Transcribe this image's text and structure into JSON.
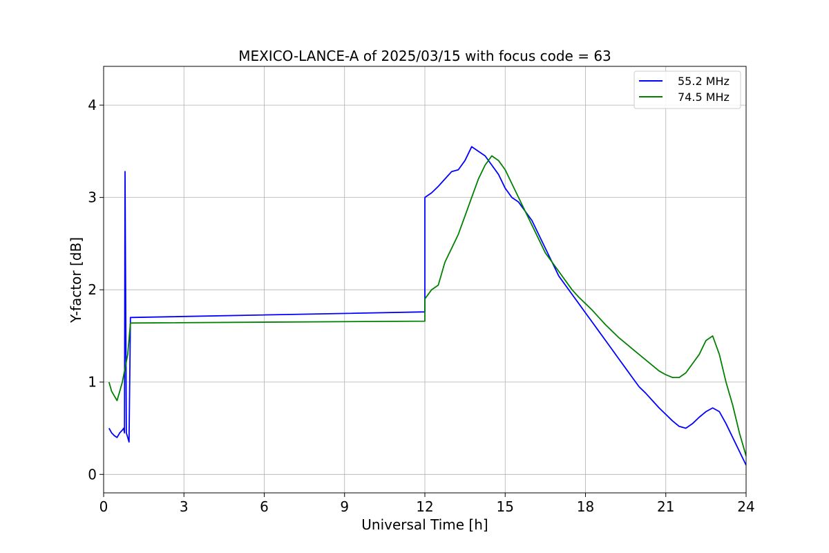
{
  "chart_data": {
    "type": "line",
    "title": "MEXICO-LANCE-A of 2025/03/15 with focus code = 63",
    "xlabel": "Universal Time [h]",
    "ylabel": "Y-factor [dB]",
    "xlim": [
      0,
      24
    ],
    "ylim": [
      -0.2,
      4.42
    ],
    "x_ticks": [
      0,
      3,
      6,
      9,
      12,
      15,
      18,
      21,
      24
    ],
    "y_ticks": [
      0,
      1,
      2,
      3,
      4
    ],
    "grid": true,
    "legend_position": "top-right",
    "series": [
      {
        "name": "55.2 MHz",
        "color": "#0000ff",
        "x": [
          0.2,
          0.3,
          0.4,
          0.5,
          0.6,
          0.7,
          0.75,
          0.78,
          0.8,
          0.85,
          0.9,
          0.95,
          1.0,
          12.0,
          12.0,
          12.25,
          12.5,
          12.75,
          13.0,
          13.25,
          13.5,
          13.75,
          14.0,
          14.25,
          14.5,
          14.75,
          15.0,
          15.25,
          15.5,
          15.75,
          16.0,
          16.25,
          16.5,
          16.75,
          17.0,
          17.25,
          17.5,
          17.75,
          18.0,
          18.25,
          18.5,
          18.75,
          19.0,
          19.25,
          19.5,
          19.75,
          20.0,
          20.25,
          20.5,
          20.75,
          21.0,
          21.25,
          21.5,
          21.75,
          22.0,
          22.25,
          22.5,
          22.75,
          23.0,
          23.25,
          23.5,
          23.75,
          24.0
        ],
        "y": [
          0.5,
          0.45,
          0.42,
          0.4,
          0.45,
          0.48,
          0.5,
          0.45,
          3.28,
          0.45,
          0.4,
          0.35,
          1.7,
          1.76,
          3.0,
          3.05,
          3.12,
          3.2,
          3.28,
          3.3,
          3.4,
          3.55,
          3.5,
          3.45,
          3.35,
          3.25,
          3.1,
          3.0,
          2.95,
          2.85,
          2.75,
          2.6,
          2.45,
          2.3,
          2.15,
          2.05,
          1.95,
          1.85,
          1.75,
          1.65,
          1.55,
          1.45,
          1.35,
          1.25,
          1.15,
          1.05,
          0.95,
          0.88,
          0.8,
          0.72,
          0.65,
          0.58,
          0.52,
          0.5,
          0.55,
          0.62,
          0.68,
          0.72,
          0.68,
          0.55,
          0.4,
          0.25,
          0.1
        ]
      },
      {
        "name": "74.5 MHz",
        "color": "#008000",
        "x": [
          0.2,
          0.3,
          0.4,
          0.5,
          0.6,
          0.7,
          0.8,
          0.9,
          1.0,
          12.0,
          12.0,
          12.25,
          12.5,
          12.75,
          13.0,
          13.25,
          13.5,
          13.75,
          14.0,
          14.25,
          14.5,
          14.75,
          15.0,
          15.25,
          15.5,
          15.75,
          16.0,
          16.25,
          16.5,
          16.75,
          17.0,
          17.25,
          17.5,
          17.75,
          18.0,
          18.25,
          18.5,
          18.75,
          19.0,
          19.25,
          19.5,
          19.75,
          20.0,
          20.25,
          20.5,
          20.75,
          21.0,
          21.25,
          21.5,
          21.75,
          22.0,
          22.25,
          22.5,
          22.75,
          23.0,
          23.25,
          23.5,
          23.75,
          24.0
        ],
        "y": [
          1.0,
          0.9,
          0.85,
          0.8,
          0.9,
          1.0,
          1.15,
          1.3,
          1.64,
          1.66,
          1.9,
          2.0,
          2.05,
          2.3,
          2.45,
          2.6,
          2.8,
          3.0,
          3.2,
          3.35,
          3.45,
          3.4,
          3.3,
          3.15,
          3.0,
          2.85,
          2.7,
          2.55,
          2.4,
          2.3,
          2.2,
          2.1,
          2.0,
          1.92,
          1.85,
          1.78,
          1.7,
          1.62,
          1.55,
          1.48,
          1.42,
          1.36,
          1.3,
          1.24,
          1.18,
          1.12,
          1.08,
          1.05,
          1.05,
          1.1,
          1.2,
          1.3,
          1.45,
          1.5,
          1.3,
          1.0,
          0.75,
          0.45,
          0.2
        ]
      }
    ]
  }
}
